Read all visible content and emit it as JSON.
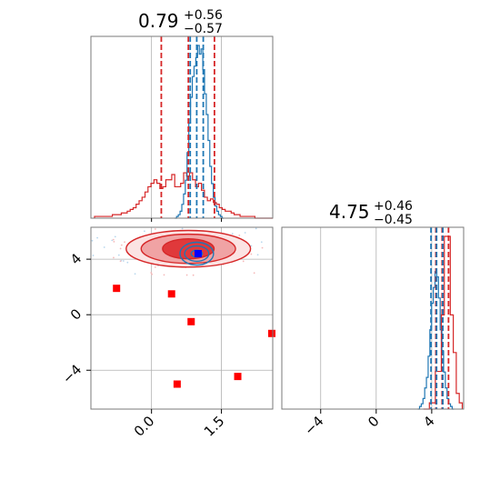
{
  "chart_data": {
    "type": "corner",
    "colors": {
      "red": "#d62728",
      "blue": "#1f77b4",
      "red_fill_dark": "#e0393b",
      "red_fill_light": "#f0a3a4",
      "marker_red": "#ff0000",
      "marker_blue": "#0000ff"
    },
    "params": [
      {
        "title_value": "0.79",
        "title_sup": "+0.56",
        "title_sub": "−0.57"
      },
      {
        "title_value": "4.75",
        "title_sup": "+0.46",
        "title_sub": "−0.45"
      }
    ],
    "axes": {
      "p1_xlim": [
        -1.3,
        2.6
      ],
      "p1_xticks": [
        0.0,
        1.5
      ],
      "p1_xtick_labels": [
        "0.0",
        "1.5"
      ],
      "p2_lim": [
        -6.8,
        6.3
      ],
      "joint_yticks": [
        4,
        0,
        -4
      ],
      "joint_ytick_labels": [
        "4",
        "0",
        "−4"
      ],
      "p2_xticks": [
        -4,
        0,
        4
      ],
      "p2_xtick_labels": [
        "−4",
        "0",
        "4"
      ]
    },
    "hist1_quantiles_red": [
      0.21,
      0.79,
      1.35
    ],
    "hist1_quantiles_blue": [
      0.83,
      0.97,
      1.11
    ],
    "hist2_quantiles_red": [
      4.3,
      4.75,
      5.21
    ],
    "hist2_quantiles_blue": [
      3.95,
      4.35,
      4.8
    ],
    "red_hist1": [
      0.01,
      0.01,
      0.01,
      0.01,
      0.01,
      0.01,
      0.02,
      0.02,
      0.02,
      0.03,
      0.03,
      0.04,
      0.05,
      0.06,
      0.08,
      0.1,
      0.12,
      0.15,
      0.18,
      0.2,
      0.22,
      0.2,
      0.17,
      0.18,
      0.22,
      0.22,
      0.25,
      0.18,
      0.18,
      0.2,
      0.26,
      0.24,
      0.26,
      0.22,
      0.18,
      0.2,
      0.16,
      0.12,
      0.1,
      0.11,
      0.09,
      0.08,
      0.06,
      0.05,
      0.04,
      0.04,
      0.03,
      0.02,
      0.02,
      0.01,
      0.01,
      0.01,
      0.01,
      0.01,
      0.0,
      0.0,
      0.0,
      0.0,
      0.0,
      0.0
    ],
    "blue_hist1": [
      0.0,
      0.01,
      0.02,
      0.04,
      0.08,
      0.14,
      0.22,
      0.38,
      0.55,
      0.7,
      0.82,
      0.88,
      0.93,
      1.0,
      0.95,
      0.98,
      0.86,
      0.72,
      0.6,
      0.45,
      0.3,
      0.2,
      0.12,
      0.07,
      0.04,
      0.02,
      0.01,
      0.0
    ],
    "red_hist2": [
      0.0,
      0.0,
      0.02,
      0.02,
      0.12,
      0.12,
      0.3,
      0.55,
      0.55,
      0.3,
      0.18,
      0.05,
      0.02
    ],
    "blue_hist2": [
      0.0,
      0.01,
      0.02,
      0.04,
      0.08,
      0.12,
      0.2,
      0.3,
      0.4,
      0.46,
      0.52,
      0.5,
      0.42,
      0.3,
      0.22,
      0.14,
      0.08,
      0.04,
      0.02,
      0.01,
      0.0
    ],
    "red_markers": [
      [
        -0.75,
        1.9
      ],
      [
        0.43,
        1.5
      ],
      [
        0.85,
        -0.5
      ],
      [
        2.6,
        -1.35
      ],
      [
        1.85,
        -4.45
      ],
      [
        0.55,
        -5.0
      ]
    ],
    "blue_marker": [
      1.0,
      4.4
    ],
    "red_contours": [
      {
        "rx": 0.48,
        "ry": 0.72,
        "level": "inner"
      },
      {
        "rx": 0.88,
        "ry": 1.05,
        "level": "middle"
      },
      {
        "rx": 1.16,
        "ry": 1.32,
        "level": "outer"
      }
    ],
    "blue_contours": [
      {
        "rx": 0.12,
        "ry": 0.25
      },
      {
        "rx": 0.26,
        "ry": 0.55
      },
      {
        "rx": 0.36,
        "ry": 0.82
      }
    ],
    "joint_center_red": [
      0.79,
      4.75
    ],
    "joint_center_blue": [
      0.97,
      4.4
    ]
  }
}
